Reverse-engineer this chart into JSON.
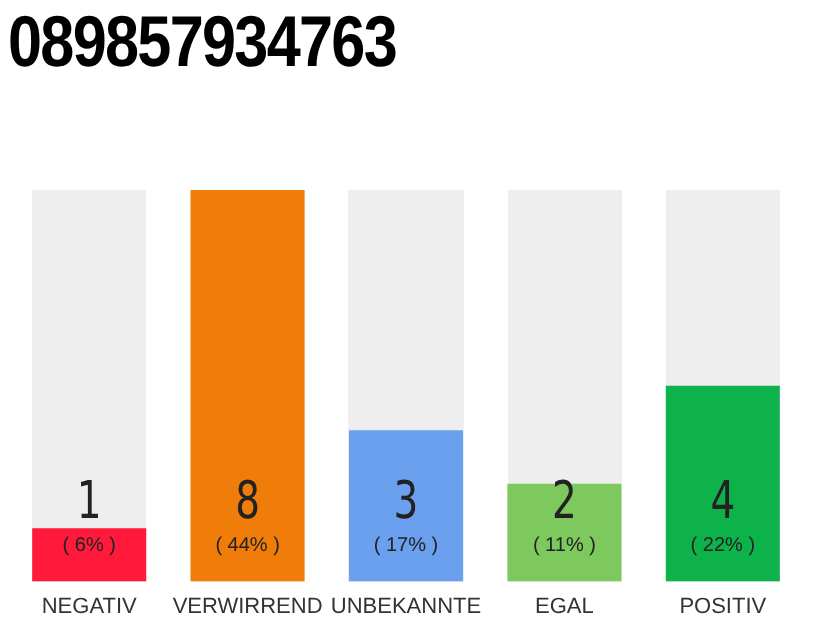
{
  "chart_data": {
    "type": "bar",
    "title": "089857934763",
    "categories": [
      "NEGATIV",
      "VERWIRREND",
      "UNBEKANNTE",
      "EGAL",
      "POSITIV"
    ],
    "values": [
      6,
      44,
      17,
      11,
      22
    ],
    "colors": [
      "#ff1a3c",
      "#f07d0a",
      "#6aa0ee",
      "#7dc95e",
      "#0db24a"
    ],
    "value_labels": [
      "( 6% )",
      "( 44% )",
      "( 17% )",
      "( 11% )",
      "( 22% )"
    ],
    "annotations": [
      "1",
      "8",
      "3",
      "2",
      "4"
    ],
    "grid": false,
    "legend": false
  }
}
